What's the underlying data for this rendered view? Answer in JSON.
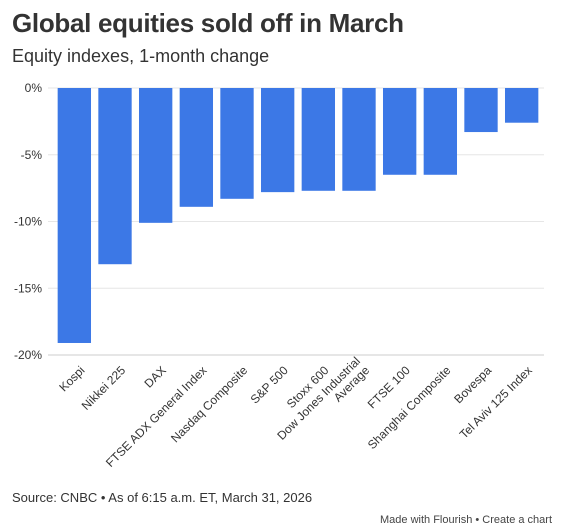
{
  "header": {
    "title": "Global equities sold off in March",
    "subtitle": "Equity indexes, 1-month change"
  },
  "footer": {
    "source": "Source: CNBC • As of 6:15 a.m. ET, March 31, 2026",
    "made_with": "Made with Flourish",
    "separator": " • ",
    "create_chart": "Create a chart"
  },
  "colors": {
    "bar": "#3c78e6",
    "grid": "#e6e6e6",
    "baseline": "#cccccc"
  },
  "chart_data": {
    "type": "bar",
    "title": "Global equities sold off in March",
    "subtitle": "Equity indexes, 1-month change",
    "categories": [
      "Kospi",
      "Nikkei 225",
      "DAX",
      "FTSE ADX General Index",
      "Nasdaq Composite",
      "S&P 500",
      "Stoxx 600",
      "Dow Jones Industrial Average",
      "FTSE 100",
      "Shanghai Composite",
      "Bovespa",
      "Tel Aviv 125 Index"
    ],
    "category_lines": [
      [
        "Kospi"
      ],
      [
        "Nikkei 225"
      ],
      [
        "DAX"
      ],
      [
        "FTSE ADX General Index"
      ],
      [
        "Nasdaq Composite"
      ],
      [
        "S&P 500"
      ],
      [
        "Stoxx 600"
      ],
      [
        "Dow Jones Industrial",
        "Average"
      ],
      [
        "FTSE 100"
      ],
      [
        "Shanghai Composite"
      ],
      [
        "Bovespa"
      ],
      [
        "Tel Aviv 125 Index"
      ]
    ],
    "values": [
      -19.1,
      -13.2,
      -10.1,
      -8.9,
      -8.3,
      -7.8,
      -7.7,
      -7.7,
      -6.5,
      -6.5,
      -3.3,
      -2.6
    ],
    "ylim": [
      -20,
      0
    ],
    "yticks": [
      0,
      -5,
      -10,
      -15,
      -20
    ],
    "ytick_labels": [
      "0%",
      "-5%",
      "-10%",
      "-15%",
      "-20%"
    ],
    "xlabel": "",
    "ylabel": "",
    "grid": true,
    "legend": "none"
  }
}
